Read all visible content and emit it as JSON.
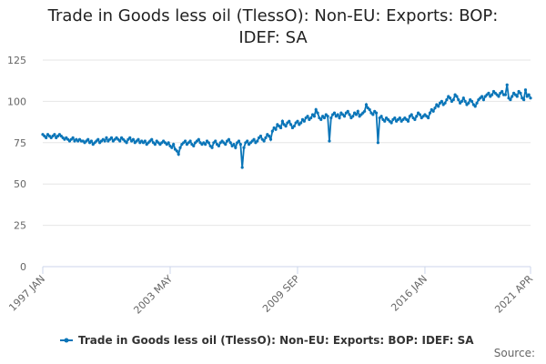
{
  "chart_data": {
    "type": "line",
    "title": "Trade in Goods less oil (TlessO): Non-EU: Exports: BOP: IDEF: SA",
    "source": "Source:",
    "categories": [
      "1997 JAN",
      null,
      null,
      null,
      null,
      null,
      null,
      null,
      null,
      null,
      null,
      null,
      null,
      null,
      null,
      null,
      null,
      null,
      null,
      null,
      null,
      null,
      null,
      null,
      null,
      null,
      null,
      null,
      null,
      null,
      null,
      null,
      null,
      null,
      null,
      null,
      null,
      null,
      null,
      null,
      null,
      null,
      null,
      null,
      null,
      null,
      null,
      null,
      null,
      null,
      null,
      null,
      null,
      null,
      null,
      null,
      null,
      null,
      null,
      null,
      null,
      null,
      null,
      null,
      null,
      null,
      null,
      null,
      null,
      null,
      null,
      null,
      null,
      null,
      null,
      null,
      "2003 MAY",
      null,
      null,
      null,
      null,
      null,
      null,
      null,
      null,
      null,
      null,
      null,
      null,
      null,
      null,
      null,
      null,
      null,
      null,
      null,
      null,
      null,
      null,
      null,
      null,
      null,
      null,
      null,
      null,
      null,
      null,
      null,
      null,
      null,
      null,
      null,
      null,
      null,
      null,
      null,
      null,
      null,
      null,
      null,
      null,
      null,
      null,
      null,
      null,
      null,
      null,
      null,
      null,
      null,
      null,
      null,
      null,
      null,
      null,
      null,
      null,
      null,
      null,
      null,
      null,
      null,
      null,
      null,
      null,
      null,
      null,
      null,
      null,
      null,
      null,
      null,
      "2009 SEP",
      null,
      null,
      null,
      null,
      null,
      null,
      null,
      null,
      null,
      null,
      null,
      null,
      null,
      null,
      null,
      null,
      null,
      null,
      null,
      null,
      null,
      null,
      null,
      null,
      null,
      null,
      null,
      null,
      null,
      null,
      null,
      null,
      null,
      null,
      null,
      null,
      null,
      null,
      null,
      null,
      null,
      null,
      null,
      null,
      null,
      null,
      null,
      null,
      null,
      null,
      null,
      null,
      null,
      null,
      null,
      null,
      null,
      null,
      null,
      null,
      null,
      null,
      null,
      null,
      null,
      null,
      null,
      null,
      null,
      null,
      null,
      null,
      null,
      null,
      null,
      "2016 JAN",
      null,
      null,
      null,
      null,
      null,
      null,
      null,
      null,
      null,
      null,
      null,
      null,
      null,
      null,
      null,
      null,
      null,
      null,
      null,
      null,
      null,
      null,
      null,
      null,
      null,
      null,
      null,
      null,
      null,
      null,
      null,
      null,
      null,
      null,
      null,
      null,
      null,
      null,
      null,
      null,
      null,
      null,
      null,
      null,
      null,
      null,
      null,
      null,
      null,
      null,
      null,
      null,
      null,
      null,
      null,
      null,
      null,
      null,
      null,
      null,
      null,
      null,
      "2021 APR"
    ],
    "series": [
      {
        "name": "Trade in Goods less oil (TlessO): Non-EU: Exports: BOP: IDEF: SA",
        "color": "#0a75b8",
        "values": [
          80,
          79,
          78,
          80,
          79,
          78,
          79,
          80,
          78,
          79,
          80,
          79,
          78,
          77,
          78,
          77,
          76,
          77,
          78,
          76,
          77,
          76,
          77,
          76,
          76,
          75,
          76,
          77,
          75,
          76,
          74,
          75,
          76,
          77,
          75,
          76,
          77,
          76,
          78,
          76,
          77,
          78,
          76,
          77,
          78,
          77,
          76,
          78,
          77,
          76,
          75,
          77,
          78,
          76,
          77,
          75,
          76,
          77,
          75,
          76,
          75,
          76,
          74,
          75,
          76,
          77,
          75,
          74,
          76,
          75,
          74,
          75,
          76,
          75,
          74,
          75,
          73,
          72,
          74,
          71,
          70,
          68,
          72,
          74,
          75,
          76,
          74,
          75,
          76,
          74,
          73,
          75,
          76,
          77,
          75,
          74,
          75,
          74,
          76,
          75,
          73,
          72,
          75,
          76,
          74,
          73,
          75,
          76,
          75,
          74,
          76,
          77,
          75,
          73,
          74,
          72,
          75,
          76,
          74,
          60,
          72,
          75,
          76,
          74,
          75,
          76,
          77,
          75,
          76,
          78,
          79,
          77,
          76,
          78,
          80,
          79,
          77,
          82,
          84,
          83,
          86,
          85,
          84,
          88,
          86,
          85,
          87,
          88,
          86,
          84,
          85,
          87,
          88,
          86,
          87,
          89,
          88,
          90,
          91,
          89,
          90,
          92,
          91,
          95,
          93,
          90,
          89,
          91,
          90,
          92,
          91,
          76,
          90,
          92,
          93,
          91,
          92,
          90,
          93,
          92,
          91,
          93,
          94,
          92,
          90,
          91,
          93,
          92,
          94,
          91,
          92,
          93,
          94,
          98,
          96,
          95,
          93,
          92,
          94,
          93,
          75,
          90,
          91,
          89,
          88,
          90,
          89,
          88,
          87,
          89,
          90,
          88,
          89,
          90,
          88,
          89,
          90,
          89,
          88,
          91,
          92,
          90,
          89,
          91,
          93,
          92,
          90,
          91,
          92,
          91,
          90,
          93,
          95,
          94,
          96,
          98,
          97,
          99,
          100,
          98,
          99,
          101,
          103,
          102,
          100,
          101,
          104,
          103,
          101,
          99,
          100,
          102,
          100,
          98,
          99,
          101,
          100,
          98,
          97,
          99,
          101,
          102,
          103,
          101,
          103,
          104,
          105,
          103,
          104,
          106,
          105,
          104,
          103,
          105,
          106,
          104,
          104,
          110,
          102,
          101,
          103,
          105,
          104,
          103,
          106,
          105,
          102,
          101,
          107,
          103,
          104,
          102
        ]
      }
    ],
    "ylim": [
      0,
      125
    ],
    "yticks": [
      0,
      25,
      50,
      75,
      100,
      125
    ],
    "grid": true
  }
}
